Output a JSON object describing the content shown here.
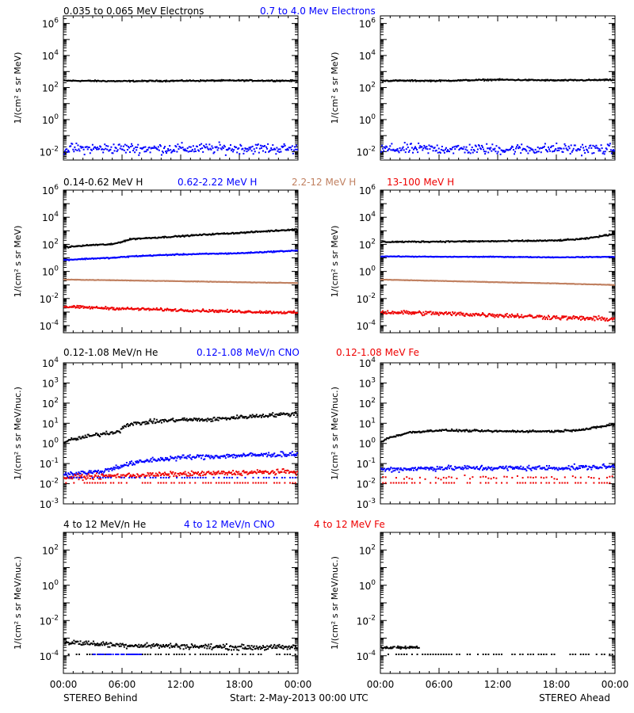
{
  "colors": {
    "black": "#000000",
    "blue": "#0000ff",
    "tan": "#c08060",
    "red": "#ee0000"
  },
  "footer": {
    "left": "STEREO Behind",
    "center": "Start:  2-May-2013 00:00 UTC",
    "right": "STEREO Ahead"
  },
  "chart_data": [
    {
      "type": "scatter",
      "id": "electrons",
      "scale": "log",
      "ylabel": "1/(cm² s sr MeV)",
      "ylim": [
        0.003,
        3000000
      ],
      "yticks": [
        {
          "v": 0.01,
          "m": "10",
          "e": "-2"
        },
        {
          "v": 1,
          "m": "10",
          "e": "0"
        },
        {
          "v": 100,
          "m": "10",
          "e": "2"
        },
        {
          "v": 10000,
          "m": "10",
          "e": "4"
        },
        {
          "v": 1000000,
          "m": "10",
          "e": "6"
        }
      ],
      "xlim": [
        0,
        24
      ],
      "xtick_values": [
        0,
        6,
        12,
        18,
        24
      ],
      "series_labels": [
        {
          "text": "0.035 to 0.065 MeV Electrons",
          "color": "#000000"
        },
        {
          "text": "0.7 to 4.0 Mev Electrons",
          "color": "#0000ff"
        }
      ],
      "panels": [
        {
          "name": "behind",
          "series": [
            {
              "color": "#000000",
              "x": [
                0,
                6,
                12,
                18,
                24
              ],
              "y": [
                270,
                250,
                265,
                275,
                265
              ],
              "scatter": 0.05
            },
            {
              "color": "#0000ff",
              "x": [
                0,
                6,
                12,
                18,
                24
              ],
              "y": [
                0.015,
                0.016,
                0.015,
                0.016,
                0.015
              ],
              "scatter": 0.4
            }
          ]
        },
        {
          "name": "ahead",
          "series": [
            {
              "color": "#000000",
              "x": [
                0,
                6,
                12,
                18,
                24
              ],
              "y": [
                270,
                265,
                310,
                280,
                300
              ],
              "scatter": 0.05
            },
            {
              "color": "#0000ff",
              "x": [
                0,
                6,
                12,
                18,
                24
              ],
              "y": [
                0.014,
                0.015,
                0.014,
                0.015,
                0.014
              ],
              "scatter": 0.4
            }
          ]
        }
      ]
    },
    {
      "type": "scatter",
      "id": "protons",
      "scale": "log",
      "ylabel": "1/(cm² s sr MeV)",
      "ylim": [
        3e-05,
        1000000
      ],
      "yticks": [
        {
          "v": 0.0001,
          "m": "10",
          "e": "-4"
        },
        {
          "v": 0.01,
          "m": "10",
          "e": "-2"
        },
        {
          "v": 1,
          "m": "10",
          "e": "0"
        },
        {
          "v": 100,
          "m": "10",
          "e": "2"
        },
        {
          "v": 10000,
          "m": "10",
          "e": "4"
        },
        {
          "v": 1000000,
          "m": "10",
          "e": "6"
        }
      ],
      "xlim": [
        0,
        24
      ],
      "xtick_values": [
        0,
        6,
        12,
        18,
        24
      ],
      "series_labels": [
        {
          "text": "0.14-0.62 MeV H",
          "color": "#000000"
        },
        {
          "text": "0.62-2.22 MeV H",
          "color": "#0000ff"
        },
        {
          "text": "2.2-12 MeV H",
          "color": "#c08060"
        },
        {
          "text": "13-100 MeV H",
          "color": "#ee0000"
        }
      ],
      "panels": [
        {
          "name": "behind",
          "series": [
            {
              "color": "#000000",
              "x": [
                0,
                3,
                5,
                7,
                9,
                12,
                15,
                18,
                21,
                24
              ],
              "y": [
                60,
                90,
                100,
                250,
                300,
                400,
                550,
                700,
                950,
                1300
              ],
              "scatter": 0.06
            },
            {
              "color": "#0000ff",
              "x": [
                0,
                3,
                5,
                7,
                9,
                12,
                15,
                18,
                21,
                24
              ],
              "y": [
                7,
                9,
                10,
                13,
                15,
                18,
                20,
                22,
                28,
                35
              ],
              "scatter": 0.05
            },
            {
              "color": "#c08060",
              "x": [
                0,
                6,
                12,
                18,
                24
              ],
              "y": [
                0.25,
                0.22,
                0.19,
                0.16,
                0.14
              ],
              "scatter": 0.02
            },
            {
              "color": "#ee0000",
              "x": [
                0,
                6,
                12,
                18,
                24
              ],
              "y": [
                0.0025,
                0.0018,
                0.0014,
                0.0011,
                0.0009
              ],
              "scatter": 0.12
            }
          ]
        },
        {
          "name": "ahead",
          "series": [
            {
              "color": "#000000",
              "x": [
                0,
                6,
                12,
                18,
                21,
                24
              ],
              "y": [
                150,
                160,
                170,
                190,
                260,
                600
              ],
              "scatter": 0.06
            },
            {
              "color": "#0000ff",
              "x": [
                0,
                6,
                12,
                18,
                24
              ],
              "y": [
                13,
                12,
                12,
                11,
                12
              ],
              "scatter": 0.03
            },
            {
              "color": "#c08060",
              "x": [
                0,
                6,
                12,
                18,
                24
              ],
              "y": [
                0.25,
                0.2,
                0.16,
                0.13,
                0.1
              ],
              "scatter": 0.02
            },
            {
              "color": "#ee0000",
              "x": [
                0,
                6,
                12,
                18,
                24
              ],
              "y": [
                0.001,
                0.0008,
                0.0006,
                0.0004,
                0.0003
              ],
              "scatter": 0.2
            }
          ]
        }
      ]
    },
    {
      "type": "scatter",
      "id": "ions-low",
      "scale": "log",
      "ylabel": "1/(cm² s sr MeV/nuc.)",
      "ylim": [
        0.001,
        10000
      ],
      "yticks": [
        {
          "v": 0.001,
          "m": "10",
          "e": "-3"
        },
        {
          "v": 0.01,
          "m": "10",
          "e": "-2"
        },
        {
          "v": 0.1,
          "m": "10",
          "e": "-1"
        },
        {
          "v": 1,
          "m": "10",
          "e": "0"
        },
        {
          "v": 10,
          "m": "10",
          "e": "1"
        },
        {
          "v": 100,
          "m": "10",
          "e": "2"
        },
        {
          "v": 1000,
          "m": "10",
          "e": "3"
        },
        {
          "v": 10000,
          "m": "10",
          "e": "4"
        }
      ],
      "xlim": [
        0,
        24
      ],
      "xtick_values": [
        0,
        6,
        12,
        18,
        24
      ],
      "series_labels": [
        {
          "text": "0.12-1.08 MeV/n He",
          "color": "#000000"
        },
        {
          "text": "0.12-1.08 MeV/n CNO",
          "color": "#0000ff"
        },
        {
          "text": "0.12-1.08 MeV Fe",
          "color": "#ee0000"
        }
      ],
      "panels": [
        {
          "name": "behind",
          "series": [
            {
              "color": "#000000",
              "x": [
                0,
                2,
                4,
                5.8,
                6.2,
                9,
                12,
                15,
                18,
                21,
                24
              ],
              "y": [
                1.2,
                2,
                3,
                4,
                8,
                12,
                15,
                15,
                20,
                25,
                30
              ],
              "scatter": 0.12
            },
            {
              "color": "#0000ff",
              "x": [
                0,
                4,
                6,
                9,
                12,
                18,
                24
              ],
              "y": [
                0.03,
                0.04,
                0.08,
                0.15,
                0.2,
                0.25,
                0.3
              ],
              "scatter": 0.15
            },
            {
              "color": "#ee0000",
              "x": [
                0,
                6,
                12,
                18,
                24
              ],
              "y": [
                0.02,
                0.025,
                0.03,
                0.035,
                0.04
              ],
              "scatter": 0.15
            },
            {
              "color": "#0000ff",
              "x": [
                0,
                24
              ],
              "y": [
                0.02,
                0.02
              ],
              "scatter": 0.0,
              "sparse": true
            },
            {
              "color": "#ee0000",
              "x": [
                0,
                24
              ],
              "y": [
                0.011,
                0.011
              ],
              "scatter": 0.0,
              "sparse": true
            }
          ]
        },
        {
          "name": "ahead",
          "series": [
            {
              "color": "#000000",
              "x": [
                0,
                1,
                3,
                6,
                12,
                18,
                21,
                24
              ],
              "y": [
                1.2,
                2,
                3.5,
                4.5,
                4,
                4,
                5,
                9
              ],
              "scatter": 0.06
            },
            {
              "color": "#0000ff",
              "x": [
                0,
                6,
                12,
                18,
                24
              ],
              "y": [
                0.05,
                0.06,
                0.06,
                0.06,
                0.07
              ],
              "scatter": 0.15
            },
            {
              "color": "#ee0000",
              "x": [
                0,
                24
              ],
              "y": [
                0.02,
                0.02
              ],
              "scatter": 0.1,
              "sparse": true
            },
            {
              "color": "#ee0000",
              "x": [
                0,
                24
              ],
              "y": [
                0.011,
                0.011
              ],
              "scatter": 0.0,
              "sparse": true
            }
          ]
        }
      ]
    },
    {
      "type": "scatter",
      "id": "ions-high",
      "scale": "log",
      "ylabel": "1/(cm² s sr MeV/nuc.)",
      "ylim": [
        1e-05,
        1000
      ],
      "yticks": [
        {
          "v": 0.0001,
          "m": "10",
          "e": "-4"
        },
        {
          "v": 0.01,
          "m": "10",
          "e": "-2"
        },
        {
          "v": 1,
          "m": "10",
          "e": "0"
        },
        {
          "v": 100,
          "m": "10",
          "e": "2"
        }
      ],
      "xlim": [
        0,
        24
      ],
      "xtick_values": [
        0,
        6,
        12,
        18,
        24
      ],
      "xtick_labels": [
        "00:00",
        "06:00",
        "12:00",
        "18:00",
        "00:00"
      ],
      "series_labels": [
        {
          "text": "4 to 12 MeV/n He",
          "color": "#000000"
        },
        {
          "text": "4 to 12 MeV/n CNO",
          "color": "#0000ff"
        },
        {
          "text": "4 to 12 MeV Fe",
          "color": "#ee0000"
        }
      ],
      "panels": [
        {
          "name": "behind",
          "series": [
            {
              "color": "#000000",
              "x": [
                0,
                6,
                12,
                18,
                24
              ],
              "y": [
                0.0006,
                0.0004,
                0.00035,
                0.0003,
                0.0003
              ],
              "scatter": 0.18
            },
            {
              "color": "#000000",
              "x": [
                0,
                24
              ],
              "y": [
                0.00012,
                0.00012
              ],
              "scatter": 0.0,
              "sparse": true
            },
            {
              "color": "#0000ff",
              "x": [
                3,
                8
              ],
              "y": [
                0.00012,
                0.00012
              ],
              "scatter": 0.0,
              "sparse": true
            }
          ]
        },
        {
          "name": "ahead",
          "series": [
            {
              "color": "#000000",
              "x": [
                0,
                4
              ],
              "y": [
                0.0003,
                0.0003
              ],
              "scatter": 0.1,
              "sparse": true
            },
            {
              "color": "#000000",
              "x": [
                0,
                24
              ],
              "y": [
                0.00012,
                0.00012
              ],
              "scatter": 0.0,
              "sparse": true
            }
          ]
        }
      ]
    }
  ]
}
